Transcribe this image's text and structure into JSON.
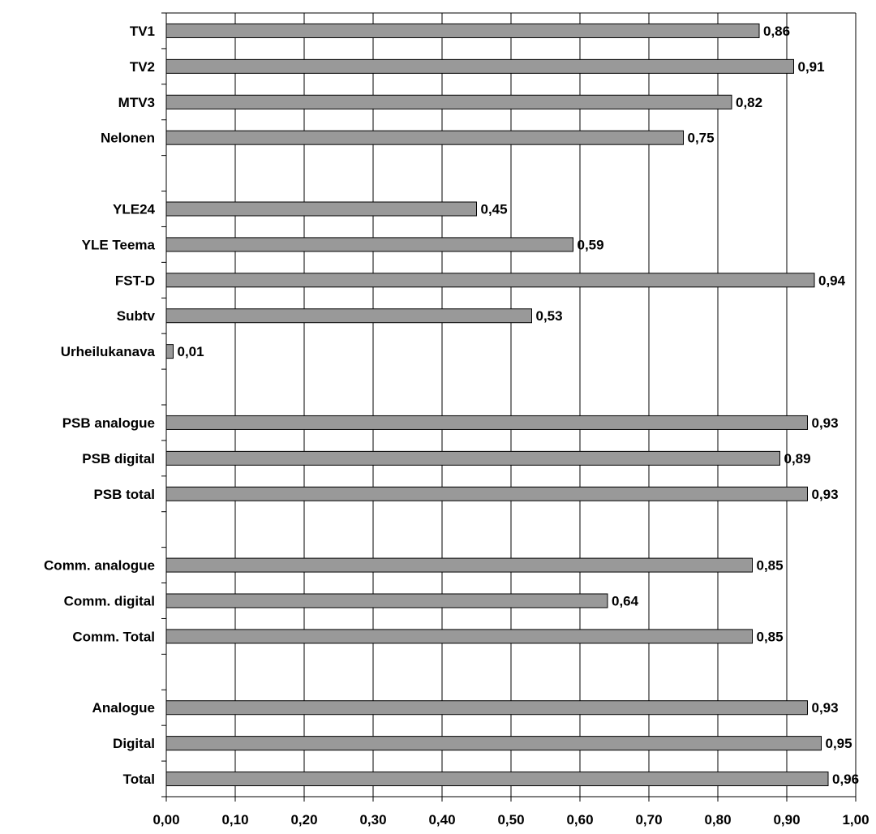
{
  "chart_data": {
    "type": "bar",
    "orientation": "horizontal",
    "categories": [
      "TV1",
      "TV2",
      "MTV3",
      "Nelonen",
      "",
      "YLE24",
      "YLE Teema",
      "FST-D",
      "Subtv",
      "Urheilukanava",
      "",
      "PSB analogue",
      "PSB digital",
      "PSB total",
      "",
      "Comm. analogue",
      "Comm. digital",
      "Comm. Total",
      "",
      "Analogue",
      "Digital",
      "Total"
    ],
    "values": [
      0.86,
      0.91,
      0.82,
      0.75,
      null,
      0.45,
      0.59,
      0.94,
      0.53,
      0.01,
      null,
      0.93,
      0.89,
      0.93,
      null,
      0.85,
      0.64,
      0.85,
      null,
      0.93,
      0.95,
      0.96
    ],
    "value_labels": [
      "0,86",
      "0,91",
      "0,82",
      "0,75",
      "",
      "0,45",
      "0,59",
      "0,94",
      "0,53",
      "0,01",
      "",
      "0,93",
      "0,89",
      "0,93",
      "",
      "0,85",
      "0,64",
      "0,85",
      "",
      "0,93",
      "0,95",
      "0,96"
    ],
    "xlim": [
      0,
      1
    ],
    "x_ticks": [
      0,
      0.1,
      0.2,
      0.3,
      0.4,
      0.5,
      0.6,
      0.7,
      0.8,
      0.9,
      1.0
    ],
    "x_tick_labels": [
      "0,00",
      "0,10",
      "0,20",
      "0,30",
      "0,40",
      "0,50",
      "0,60",
      "0,70",
      "0,80",
      "0,90",
      "1,00"
    ],
    "title": "",
    "xlabel": "",
    "ylabel": "",
    "grid": "vertical",
    "legend": "none",
    "bar_color": "#999999",
    "bar_edge_color": "#000000",
    "grid_color": "#000000"
  }
}
